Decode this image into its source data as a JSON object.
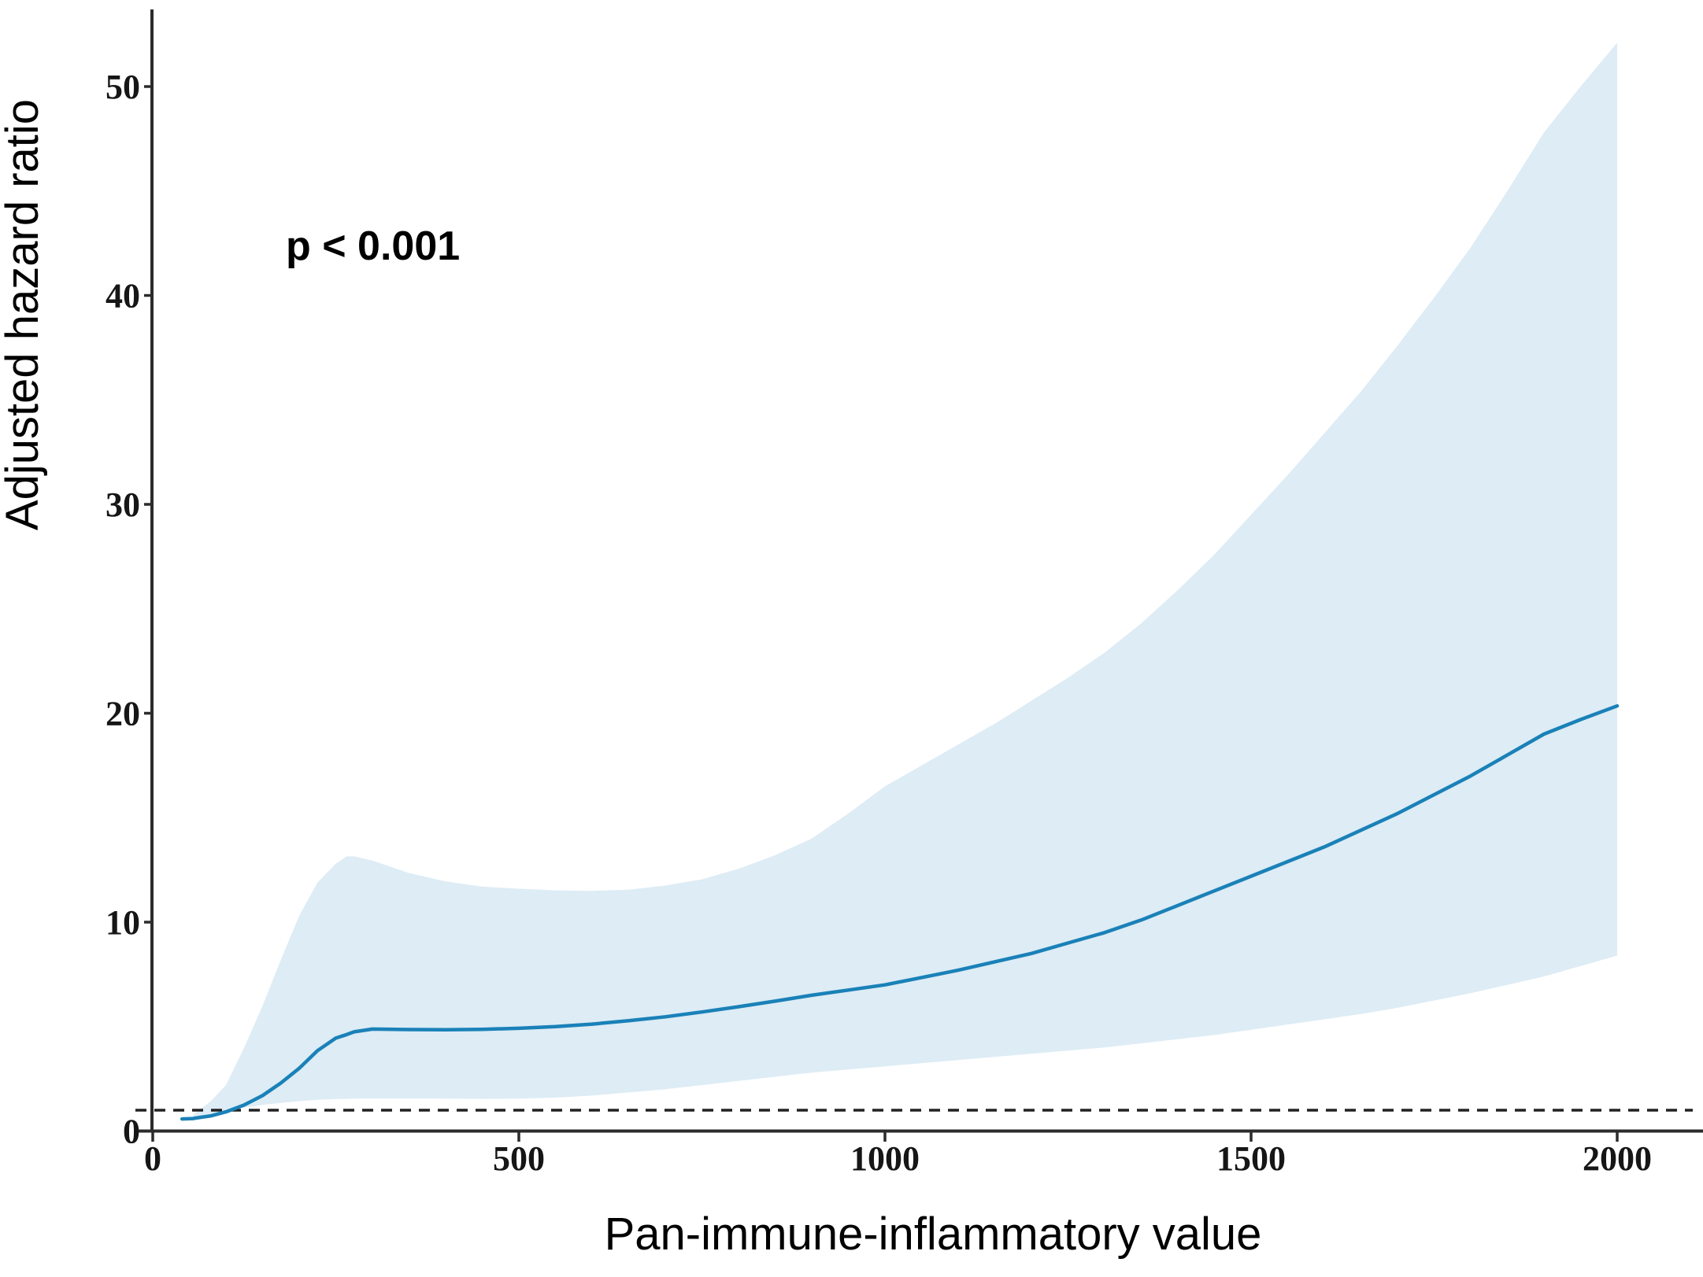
{
  "chart_data": {
    "type": "line",
    "title": "",
    "xlabel": "Pan-immune-inflammatory value",
    "ylabel": "Adjusted hazard ratio",
    "annotation_p_value": "p < 0.001",
    "reference_line_y": 1,
    "xlim": [
      0,
      2118
    ],
    "ylim": [
      0,
      53.5
    ],
    "grid": false,
    "legend": "none",
    "line_color": "#1a81b8",
    "band_color": "#ddecf5",
    "axis_color": "#2b2b2b",
    "reference_line_color": "#222222",
    "x_ticks": [
      {
        "value": 0,
        "label": "0"
      },
      {
        "value": 500,
        "label": "500"
      },
      {
        "value": 1000,
        "label": "1000"
      },
      {
        "value": 1500,
        "label": "1500"
      },
      {
        "value": 2000,
        "label": "2000"
      }
    ],
    "y_ticks": [
      {
        "value": 0,
        "label": "0"
      },
      {
        "value": 10,
        "label": "10"
      },
      {
        "value": 20,
        "label": "20"
      },
      {
        "value": 30,
        "label": "30"
      },
      {
        "value": 40,
        "label": "40"
      },
      {
        "value": 50,
        "label": "50"
      }
    ],
    "x": [
      40,
      55,
      60,
      80,
      100,
      125,
      150,
      175,
      200,
      225,
      250,
      265,
      275,
      300,
      350,
      400,
      450,
      500,
      550,
      600,
      650,
      700,
      750,
      800,
      850,
      900,
      950,
      1000,
      1050,
      1100,
      1150,
      1200,
      1250,
      1300,
      1350,
      1400,
      1450,
      1500,
      1550,
      1600,
      1650,
      1700,
      1750,
      1800,
      1850,
      1900,
      1950,
      2000
    ],
    "series": [
      {
        "name": "Adjusted hazard ratio",
        "role": "line",
        "values": [
          0.58,
          0.6,
          0.63,
          0.73,
          0.92,
          1.25,
          1.7,
          2.3,
          3.0,
          3.85,
          4.45,
          4.62,
          4.75,
          4.88,
          4.86,
          4.85,
          4.87,
          4.92,
          5.0,
          5.12,
          5.28,
          5.47,
          5.7,
          5.95,
          6.22,
          6.5,
          6.75,
          7.0,
          7.35,
          7.7,
          8.1,
          8.5,
          9.0,
          9.5,
          10.1,
          10.8,
          11.5,
          12.2,
          12.9,
          13.6,
          14.4,
          15.2,
          16.1,
          17.0,
          18.0,
          19.0,
          19.7,
          20.35
        ]
      },
      {
        "name": "95% CI upper",
        "role": "band-upper",
        "values": [
          null,
          0.75,
          0.9,
          1.45,
          2.2,
          4.0,
          6.0,
          8.2,
          10.3,
          11.9,
          12.8,
          13.15,
          13.15,
          12.95,
          12.35,
          11.95,
          11.7,
          11.6,
          11.52,
          11.5,
          11.55,
          11.75,
          12.05,
          12.55,
          13.2,
          14.0,
          15.2,
          16.5,
          17.5,
          18.5,
          19.5,
          20.6,
          21.7,
          22.9,
          24.3,
          25.9,
          27.6,
          29.5,
          31.4,
          33.4,
          35.4,
          37.6,
          39.9,
          42.3,
          45.0,
          47.8,
          50.0,
          52.1
        ]
      },
      {
        "name": "95% CI lower",
        "role": "band-lower",
        "values": [
          null,
          0.55,
          0.6,
          0.75,
          0.95,
          1.12,
          1.25,
          1.35,
          1.43,
          1.5,
          1.53,
          1.54,
          1.55,
          1.56,
          1.56,
          1.55,
          1.54,
          1.55,
          1.6,
          1.7,
          1.85,
          2.0,
          2.2,
          2.4,
          2.6,
          2.8,
          2.95,
          3.1,
          3.25,
          3.4,
          3.55,
          3.7,
          3.85,
          4.0,
          4.2,
          4.4,
          4.6,
          4.85,
          5.1,
          5.35,
          5.6,
          5.9,
          6.25,
          6.6,
          7.0,
          7.4,
          7.9,
          8.4
        ]
      }
    ]
  }
}
